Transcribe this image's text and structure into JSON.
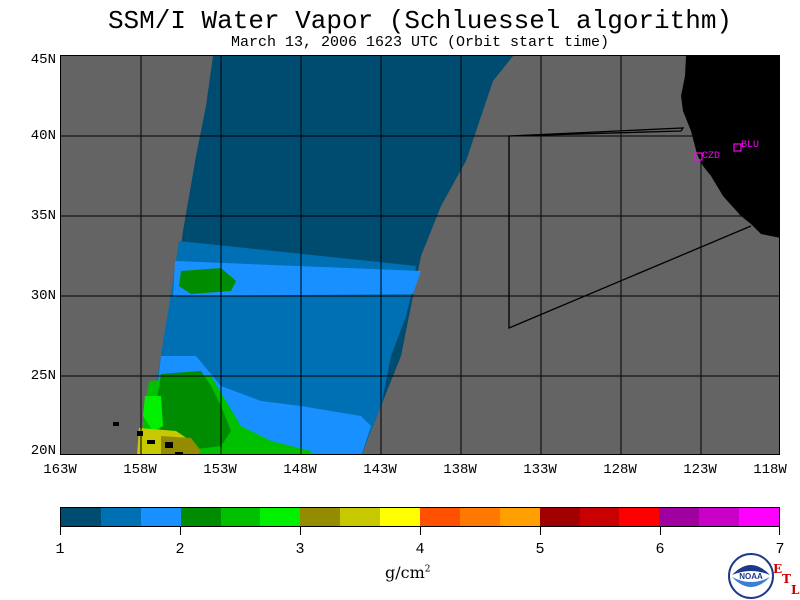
{
  "title": "SSM/I Water Vapor (Schluessel algorithm)",
  "subtitle": "March 13, 2006  1623 UTC  (Orbit start time)",
  "map": {
    "lat_labels": [
      "45N",
      "40N",
      "35N",
      "30N",
      "25N",
      "20N"
    ],
    "lon_labels": [
      "163W",
      "158W",
      "153W",
      "148W",
      "143W",
      "138W",
      "133W",
      "128W",
      "123W",
      "118W"
    ],
    "lat_range": [
      20,
      45
    ],
    "lon_range": [
      -163,
      -118
    ],
    "stations": [
      {
        "name": "CZD",
        "lat": 38.6,
        "lon": -123.2
      },
      {
        "name": "BLU",
        "lat": 39.3,
        "lon": -120.8
      }
    ],
    "colors": {
      "land": "#000000",
      "no_data": "#646464",
      "gridlines": "#000000",
      "stations": "#ff00ff"
    }
  },
  "colorbar": {
    "ticks": [
      "1",
      "2",
      "3",
      "4",
      "5",
      "6",
      "7"
    ],
    "units_base": "g/cm",
    "units_exp": "2",
    "colors": [
      "#004c70",
      "#0070b4",
      "#1890ff",
      "#008c00",
      "#00c000",
      "#00f000",
      "#948c00",
      "#c8c800",
      "#ffff00",
      "#ff5000",
      "#ff7800",
      "#ffa000",
      "#a00000",
      "#c80000",
      "#ff0000",
      "#a000a0",
      "#c800c8",
      "#ff00ff"
    ]
  },
  "logo": {
    "text": "NOAA",
    "etl_letters": [
      "E",
      "T",
      "L"
    ]
  }
}
